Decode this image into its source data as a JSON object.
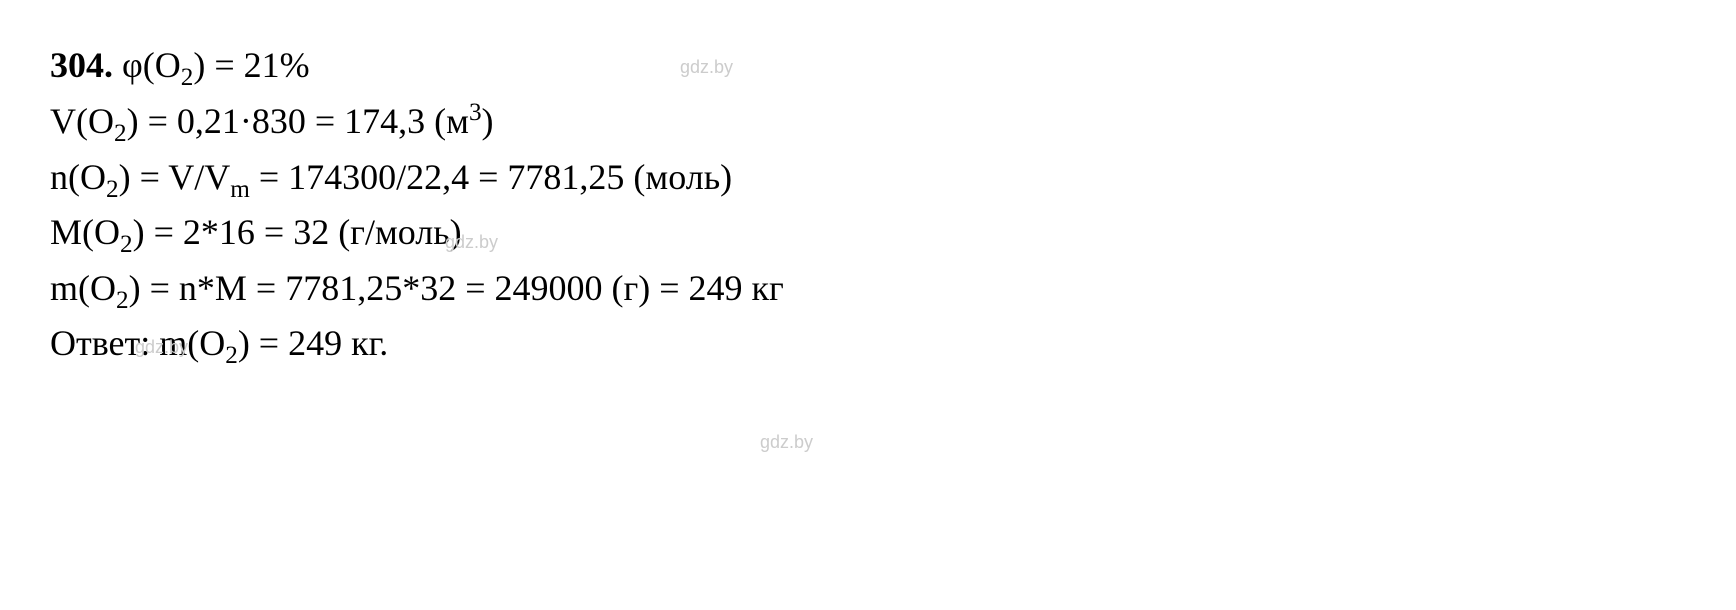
{
  "problem": {
    "number": "304.",
    "line1_formula": "φ(O",
    "line1_sub": "2",
    "line1_eq": ") = 21%",
    "line2_a": "V(O",
    "line2_sub": "2",
    "line2_b": ") = 0,21·830 = 174,3 (м",
    "line2_sup": "3",
    "line2_c": ")",
    "line3_a": "n(O",
    "line3_sub1": "2",
    "line3_b": ") = V/V",
    "line3_subm": "m",
    "line3_c": " = 174300/22,4 = 7781,25 (моль)",
    "line4_a": "M(O",
    "line4_sub": "2",
    "line4_b": ") = 2*16 = 32 (г/моль)",
    "line5_a": "m(O",
    "line5_sub": "2",
    "line5_b": ") = n*M = 7781,25*32 = 249000 (г) = 249 кг",
    "line6_a": "Ответ: m(O",
    "line6_sub": "2",
    "line6_b": ") = 249 кг."
  },
  "watermark": "gdz.by",
  "styling": {
    "background_color": "#ffffff",
    "text_color": "#000000",
    "watermark_color": "#cccccc",
    "font_family": "Times New Roman",
    "font_size": 36,
    "watermark_font_size": 18
  }
}
